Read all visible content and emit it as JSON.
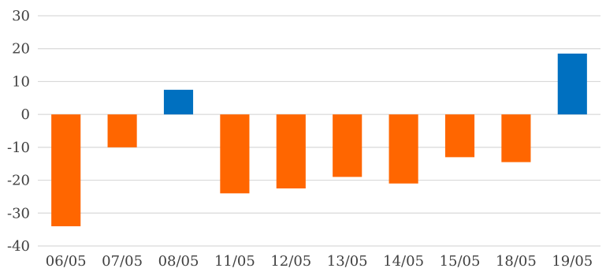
{
  "chart_data": {
    "type": "bar",
    "categories": [
      "06/05",
      "07/05",
      "08/05",
      "11/05",
      "12/05",
      "13/05",
      "14/05",
      "15/05",
      "18/05",
      "19/05"
    ],
    "values": [
      -34,
      -10,
      7.5,
      -24,
      -22.5,
      -19,
      -21,
      -13,
      -14.5,
      18.5
    ],
    "ylim": [
      -40,
      30
    ],
    "yticks": [
      30,
      20,
      10,
      0,
      -10,
      -20,
      -30,
      -40
    ],
    "grid": true,
    "legend": "none",
    "title": "",
    "xlabel": "",
    "ylabel": "",
    "colors": {
      "negative": "#ff6600",
      "positive": "#0070c0",
      "grid": "#d9d9d9"
    }
  }
}
